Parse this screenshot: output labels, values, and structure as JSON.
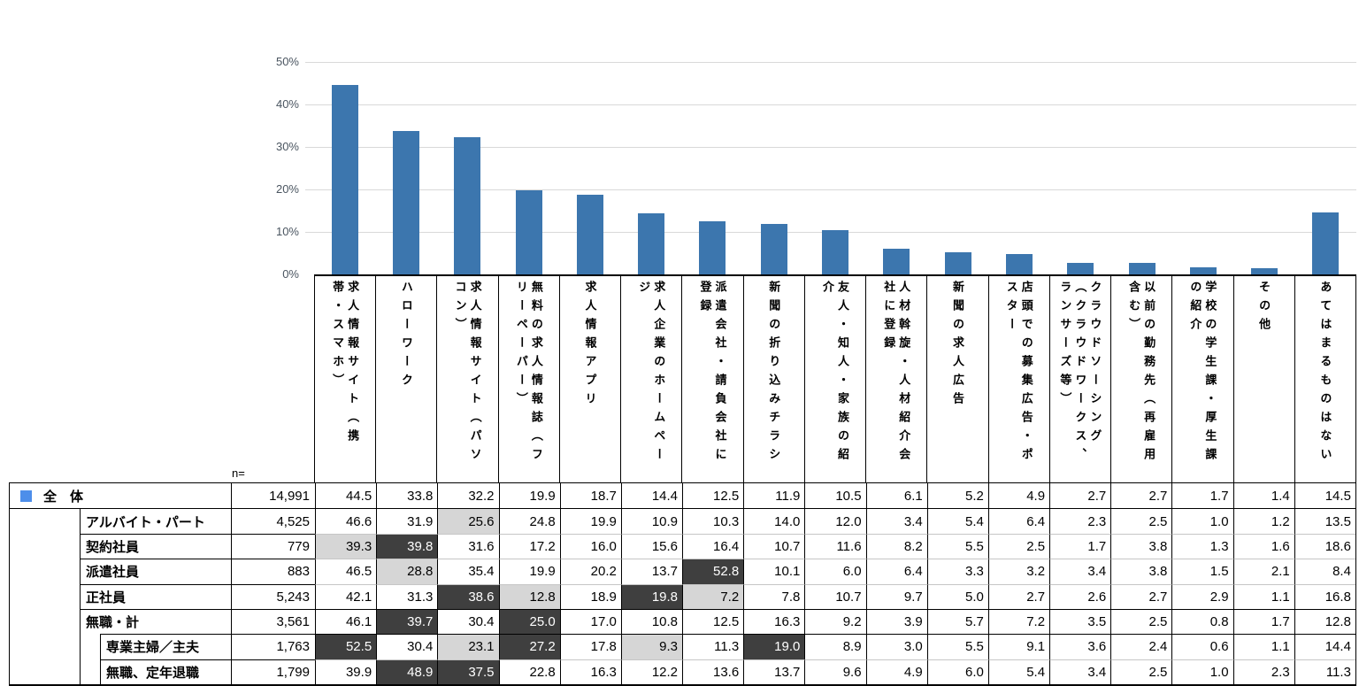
{
  "chart_data": {
    "type": "bar",
    "title": "",
    "series_name": "全体",
    "categories": [
      "求人情報サイト（携帯・スマホ）",
      "ハローワーク",
      "求人情報サイト（パソコン）",
      "無料の求人情報誌（フリーペーパー）",
      "求人情報アプリ",
      "求人企業のホームページ",
      "派遣会社・請負会社に登録",
      "新聞の折り込みチラシ",
      "友人・知人・家族の紹介",
      "人材斡旋・人材紹介会社に登録",
      "新聞の求人広告",
      "店頭での募集広告・ポスター",
      "クラウドソーシング（クラウドワークス、ランサーズ等）",
      "以前の勤務先（再雇用含む）",
      "学校の学生課・厚生課の紹介",
      "その他",
      "あてはまるものはない"
    ],
    "category_lines": [
      [
        "求人情報サイト（携",
        "帯・スマホ）"
      ],
      [
        "ハローワーク"
      ],
      [
        "求人情報サイト（パソ",
        "コン）"
      ],
      [
        "無料の求人情報誌（フ",
        "リーペーパー）"
      ],
      [
        "求人情報アプリ"
      ],
      [
        "求人企業のホームペー",
        "ジ"
      ],
      [
        "派遣会社・請負会社に",
        "登録"
      ],
      [
        "新聞の折り込みチラシ"
      ],
      [
        "友人・知人・家族の紹",
        "介"
      ],
      [
        "人材斡旋・人材紹介会",
        "社に登録"
      ],
      [
        "新聞の求人広告"
      ],
      [
        "店頭での募集広告・ポ",
        "スター"
      ],
      [
        "クラウドソーシング",
        "（クラウドワークス、",
        "ランサーズ等）"
      ],
      [
        "以前の勤務先（再雇用",
        "含む）"
      ],
      [
        "学校の学生課・厚生課",
        "の紹介"
      ],
      [
        "その他"
      ],
      [
        "あてはまるものはない"
      ]
    ],
    "values": [
      44.5,
      33.8,
      32.2,
      19.9,
      18.7,
      14.4,
      12.5,
      11.9,
      10.5,
      6.1,
      5.2,
      4.9,
      2.7,
      2.7,
      1.7,
      1.4,
      14.5
    ],
    "xlabel": "",
    "ylabel": "",
    "ylim": [
      0,
      50
    ],
    "yticks": [
      "50%",
      "40%",
      "30%",
      "20%",
      "10%",
      "0%"
    ],
    "grid": true,
    "bar_color": "#3C76AE",
    "grid_color": "#D9D9D9"
  },
  "table": {
    "n_label": "n=",
    "legend_color": "#4D8EEA",
    "highlight_light_color": "#D6D6D6",
    "highlight_dark_color": "#3F3F3F",
    "rows": [
      {
        "label": "全　体",
        "indent": 0,
        "n": "14,991",
        "values": [
          "44.5",
          "33.8",
          "32.2",
          "19.9",
          "18.7",
          "14.4",
          "12.5",
          "11.9",
          "10.5",
          "6.1",
          "5.2",
          "4.9",
          "2.7",
          "2.7",
          "1.7",
          "1.4",
          "14.5"
        ],
        "highlights": {}
      },
      {
        "label": "アルバイト・パート",
        "indent": 1,
        "n": "4,525",
        "values": [
          "46.6",
          "31.9",
          "25.6",
          "24.8",
          "19.9",
          "10.9",
          "10.3",
          "14.0",
          "12.0",
          "3.4",
          "5.4",
          "6.4",
          "2.3",
          "2.5",
          "1.0",
          "1.2",
          "13.5"
        ],
        "highlights": {
          "2": "light"
        }
      },
      {
        "label": "契約社員",
        "indent": 1,
        "n": "779",
        "values": [
          "39.3",
          "39.8",
          "31.6",
          "17.2",
          "16.0",
          "15.6",
          "16.4",
          "10.7",
          "11.6",
          "8.2",
          "5.5",
          "2.5",
          "1.7",
          "3.8",
          "1.3",
          "1.6",
          "18.6"
        ],
        "highlights": {
          "0": "light",
          "1": "dark"
        }
      },
      {
        "label": "派遣社員",
        "indent": 1,
        "n": "883",
        "values": [
          "46.5",
          "28.8",
          "35.4",
          "19.9",
          "20.2",
          "13.7",
          "52.8",
          "10.1",
          "6.0",
          "6.4",
          "3.3",
          "3.2",
          "3.4",
          "3.8",
          "1.5",
          "2.1",
          "8.4"
        ],
        "highlights": {
          "1": "light",
          "6": "dark"
        }
      },
      {
        "label": "正社員",
        "indent": 1,
        "n": "5,243",
        "values": [
          "42.1",
          "31.3",
          "38.6",
          "12.8",
          "18.9",
          "19.8",
          "7.2",
          "7.8",
          "10.7",
          "9.7",
          "5.0",
          "2.7",
          "2.6",
          "2.7",
          "2.9",
          "1.1",
          "16.8"
        ],
        "highlights": {
          "2": "dark",
          "3": "light",
          "5": "dark",
          "6": "light"
        }
      },
      {
        "label": "無職・計",
        "indent": 1,
        "n": "3,561",
        "values": [
          "46.1",
          "39.7",
          "30.4",
          "25.0",
          "17.0",
          "10.8",
          "12.5",
          "16.3",
          "9.2",
          "3.9",
          "5.7",
          "7.2",
          "3.5",
          "2.5",
          "0.8",
          "1.7",
          "12.8"
        ],
        "highlights": {
          "1": "dark",
          "3": "dark"
        }
      },
      {
        "label": "専業主婦／主夫",
        "indent": 2,
        "n": "1,763",
        "values": [
          "52.5",
          "30.4",
          "23.1",
          "27.2",
          "17.8",
          "9.3",
          "11.3",
          "19.0",
          "8.9",
          "3.0",
          "5.5",
          "9.1",
          "3.6",
          "2.4",
          "0.6",
          "1.1",
          "14.4"
        ],
        "highlights": {
          "0": "dark",
          "2": "light",
          "3": "dark",
          "5": "light",
          "7": "dark"
        }
      },
      {
        "label": "無職、定年退職",
        "indent": 2,
        "n": "1,799",
        "values": [
          "39.9",
          "48.9",
          "37.5",
          "22.8",
          "16.3",
          "12.2",
          "13.6",
          "13.7",
          "9.6",
          "4.9",
          "6.0",
          "5.4",
          "3.4",
          "2.5",
          "1.0",
          "2.3",
          "11.3"
        ],
        "highlights": {
          "1": "dark",
          "2": "dark"
        }
      }
    ]
  }
}
